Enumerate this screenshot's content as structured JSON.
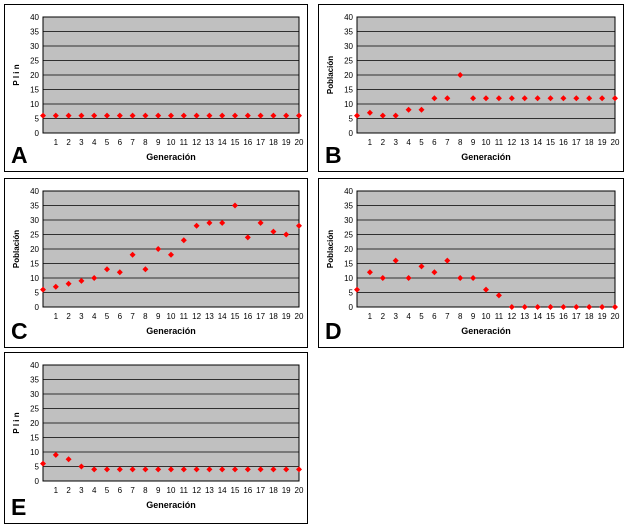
{
  "figure": {
    "panels": [
      {
        "letter": "A",
        "ylabel": "P l i n",
        "xlabel": "Generación"
      },
      {
        "letter": "B",
        "ylabel": "Población",
        "xlabel": "Generación"
      },
      {
        "letter": "C",
        "ylabel": "Población",
        "xlabel": "Generación"
      },
      {
        "letter": "D",
        "ylabel": "Población",
        "xlabel": "Generación"
      },
      {
        "letter": "E",
        "ylabel": "P l i n",
        "xlabel": "Generación"
      }
    ]
  },
  "colors": {
    "plot_bg": "#c0c0c0",
    "marker": "#ff0000",
    "grid": "#000000"
  },
  "chart_data": [
    {
      "type": "scatter",
      "title": "",
      "xlabel": "Generación",
      "ylabel": "P l i n",
      "x": [
        0,
        1,
        2,
        3,
        4,
        5,
        6,
        7,
        8,
        9,
        10,
        11,
        12,
        13,
        14,
        15,
        16,
        17,
        18,
        19,
        20
      ],
      "ylim": [
        0,
        40
      ],
      "yticks": [
        0,
        5,
        10,
        15,
        20,
        25,
        30,
        35,
        40
      ],
      "grid": true,
      "series": [
        {
          "values": [
            6,
            6,
            6,
            6,
            6,
            6,
            6,
            6,
            6,
            6,
            6,
            6,
            6,
            6,
            6,
            6,
            6,
            6,
            6,
            6,
            6
          ]
        }
      ]
    },
    {
      "type": "scatter",
      "title": "",
      "xlabel": "Generación",
      "ylabel": "Población",
      "x": [
        0,
        1,
        2,
        3,
        4,
        5,
        6,
        7,
        8,
        9,
        10,
        11,
        12,
        13,
        14,
        15,
        16,
        17,
        18,
        19,
        20
      ],
      "ylim": [
        0,
        40
      ],
      "yticks": [
        0,
        5,
        10,
        15,
        20,
        25,
        30,
        35,
        40
      ],
      "grid": true,
      "series": [
        {
          "values": [
            6,
            7,
            6,
            6,
            8,
            8,
            12,
            12,
            20,
            12,
            12,
            12,
            12,
            12,
            12,
            12,
            12,
            12,
            12,
            12,
            12
          ]
        }
      ]
    },
    {
      "type": "scatter",
      "title": "",
      "xlabel": "Generación",
      "ylabel": "Población",
      "x": [
        0,
        1,
        2,
        3,
        4,
        5,
        6,
        7,
        8,
        9,
        10,
        11,
        12,
        13,
        14,
        15,
        16,
        17,
        18,
        19,
        20
      ],
      "ylim": [
        0,
        40
      ],
      "yticks": [
        0,
        5,
        10,
        15,
        20,
        25,
        30,
        35,
        40
      ],
      "grid": true,
      "series": [
        {
          "values": [
            6,
            7,
            8,
            9,
            10,
            13,
            12,
            18,
            13,
            20,
            18,
            23,
            28,
            29,
            29,
            35,
            24,
            29,
            26,
            25,
            28
          ]
        }
      ]
    },
    {
      "type": "scatter",
      "title": "",
      "xlabel": "Generación",
      "ylabel": "Población",
      "x": [
        0,
        1,
        2,
        3,
        4,
        5,
        6,
        7,
        8,
        9,
        10,
        11,
        12,
        13,
        14,
        15,
        16,
        17,
        18,
        19,
        20
      ],
      "ylim": [
        0,
        40
      ],
      "yticks": [
        0,
        5,
        10,
        15,
        20,
        25,
        30,
        35,
        40
      ],
      "grid": true,
      "series": [
        {
          "values": [
            6,
            12,
            10,
            16,
            10,
            14,
            12,
            16,
            10,
            10,
            6,
            4,
            0,
            0,
            0,
            0,
            0,
            0,
            0,
            0,
            0
          ]
        }
      ]
    },
    {
      "type": "scatter",
      "title": "",
      "xlabel": "Generación",
      "ylabel": "P l i n",
      "x": [
        0,
        1,
        2,
        3,
        4,
        5,
        6,
        7,
        8,
        9,
        10,
        11,
        12,
        13,
        14,
        15,
        16,
        17,
        18,
        19,
        20
      ],
      "ylim": [
        0,
        40
      ],
      "yticks": [
        0,
        5,
        10,
        15,
        20,
        25,
        30,
        35,
        40
      ],
      "grid": true,
      "series": [
        {
          "values": [
            6,
            9,
            7.5,
            5,
            4,
            4,
            4,
            4,
            4,
            4,
            4,
            4,
            4,
            4,
            4,
            4,
            4,
            4,
            4,
            4,
            4
          ]
        }
      ]
    }
  ]
}
